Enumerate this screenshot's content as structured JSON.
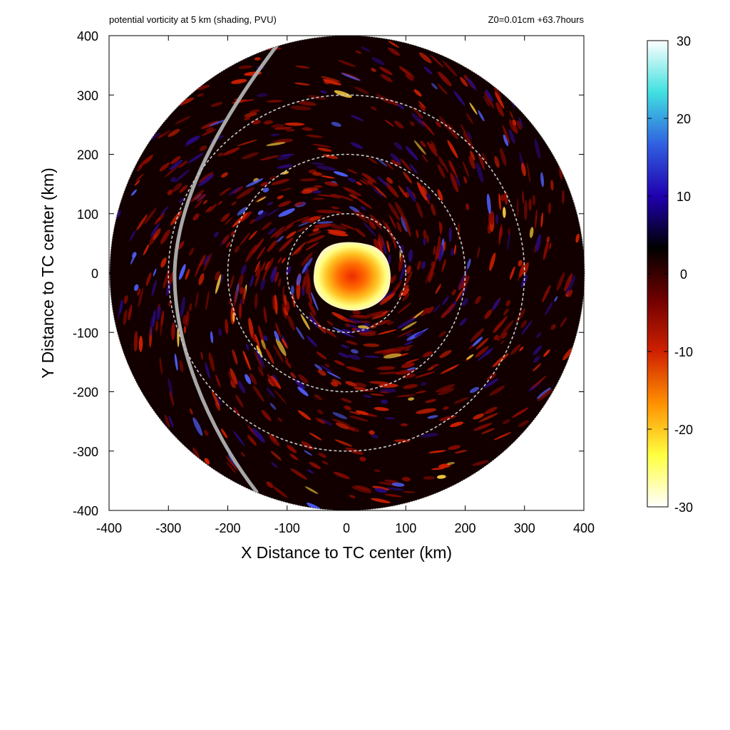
{
  "chart_data": {
    "type": "heatmap",
    "title": "potential vorticity at 5 km (shading, PVU)",
    "subtitle": "Z0=0.01cm  +63.7hours",
    "xlabel": "X Distance to TC center (km)",
    "ylabel": "Y Distance to TC center (km)",
    "xlim": [
      -400,
      400
    ],
    "ylim": [
      -400,
      400
    ],
    "x_ticks": [
      -400,
      -300,
      -200,
      -100,
      0,
      100,
      200,
      300,
      400
    ],
    "y_ticks": [
      -400,
      -300,
      -200,
      -100,
      0,
      100,
      200,
      300,
      400
    ],
    "x_tick_labels": [
      "-400",
      "-300",
      "-200",
      "-100",
      "0",
      "100",
      "200",
      "300",
      "400"
    ],
    "y_tick_labels": [
      "-400",
      "-300",
      "-200",
      "-100",
      "0",
      "100",
      "200",
      "300",
      "400"
    ],
    "domain_radius_km": 400,
    "range_rings_km": [
      100,
      200,
      300
    ],
    "colorbar": {
      "min": -30,
      "max": 30,
      "ticks": [
        30,
        20,
        10,
        0,
        -10,
        -20,
        -30
      ],
      "tick_labels": [
        "30",
        "20",
        "10",
        "0",
        "-10",
        "-20",
        "-30"
      ],
      "colors": [
        "#ffffff",
        "#40e0e0",
        "#3060e0",
        "#2000b0",
        "#000000",
        "#700000",
        "#d02000",
        "#ff9000",
        "#ffff40",
        "#ffffff"
      ]
    },
    "features": {
      "core_pv_max": 30,
      "track_line": "grey arc, left side of domain"
    }
  }
}
